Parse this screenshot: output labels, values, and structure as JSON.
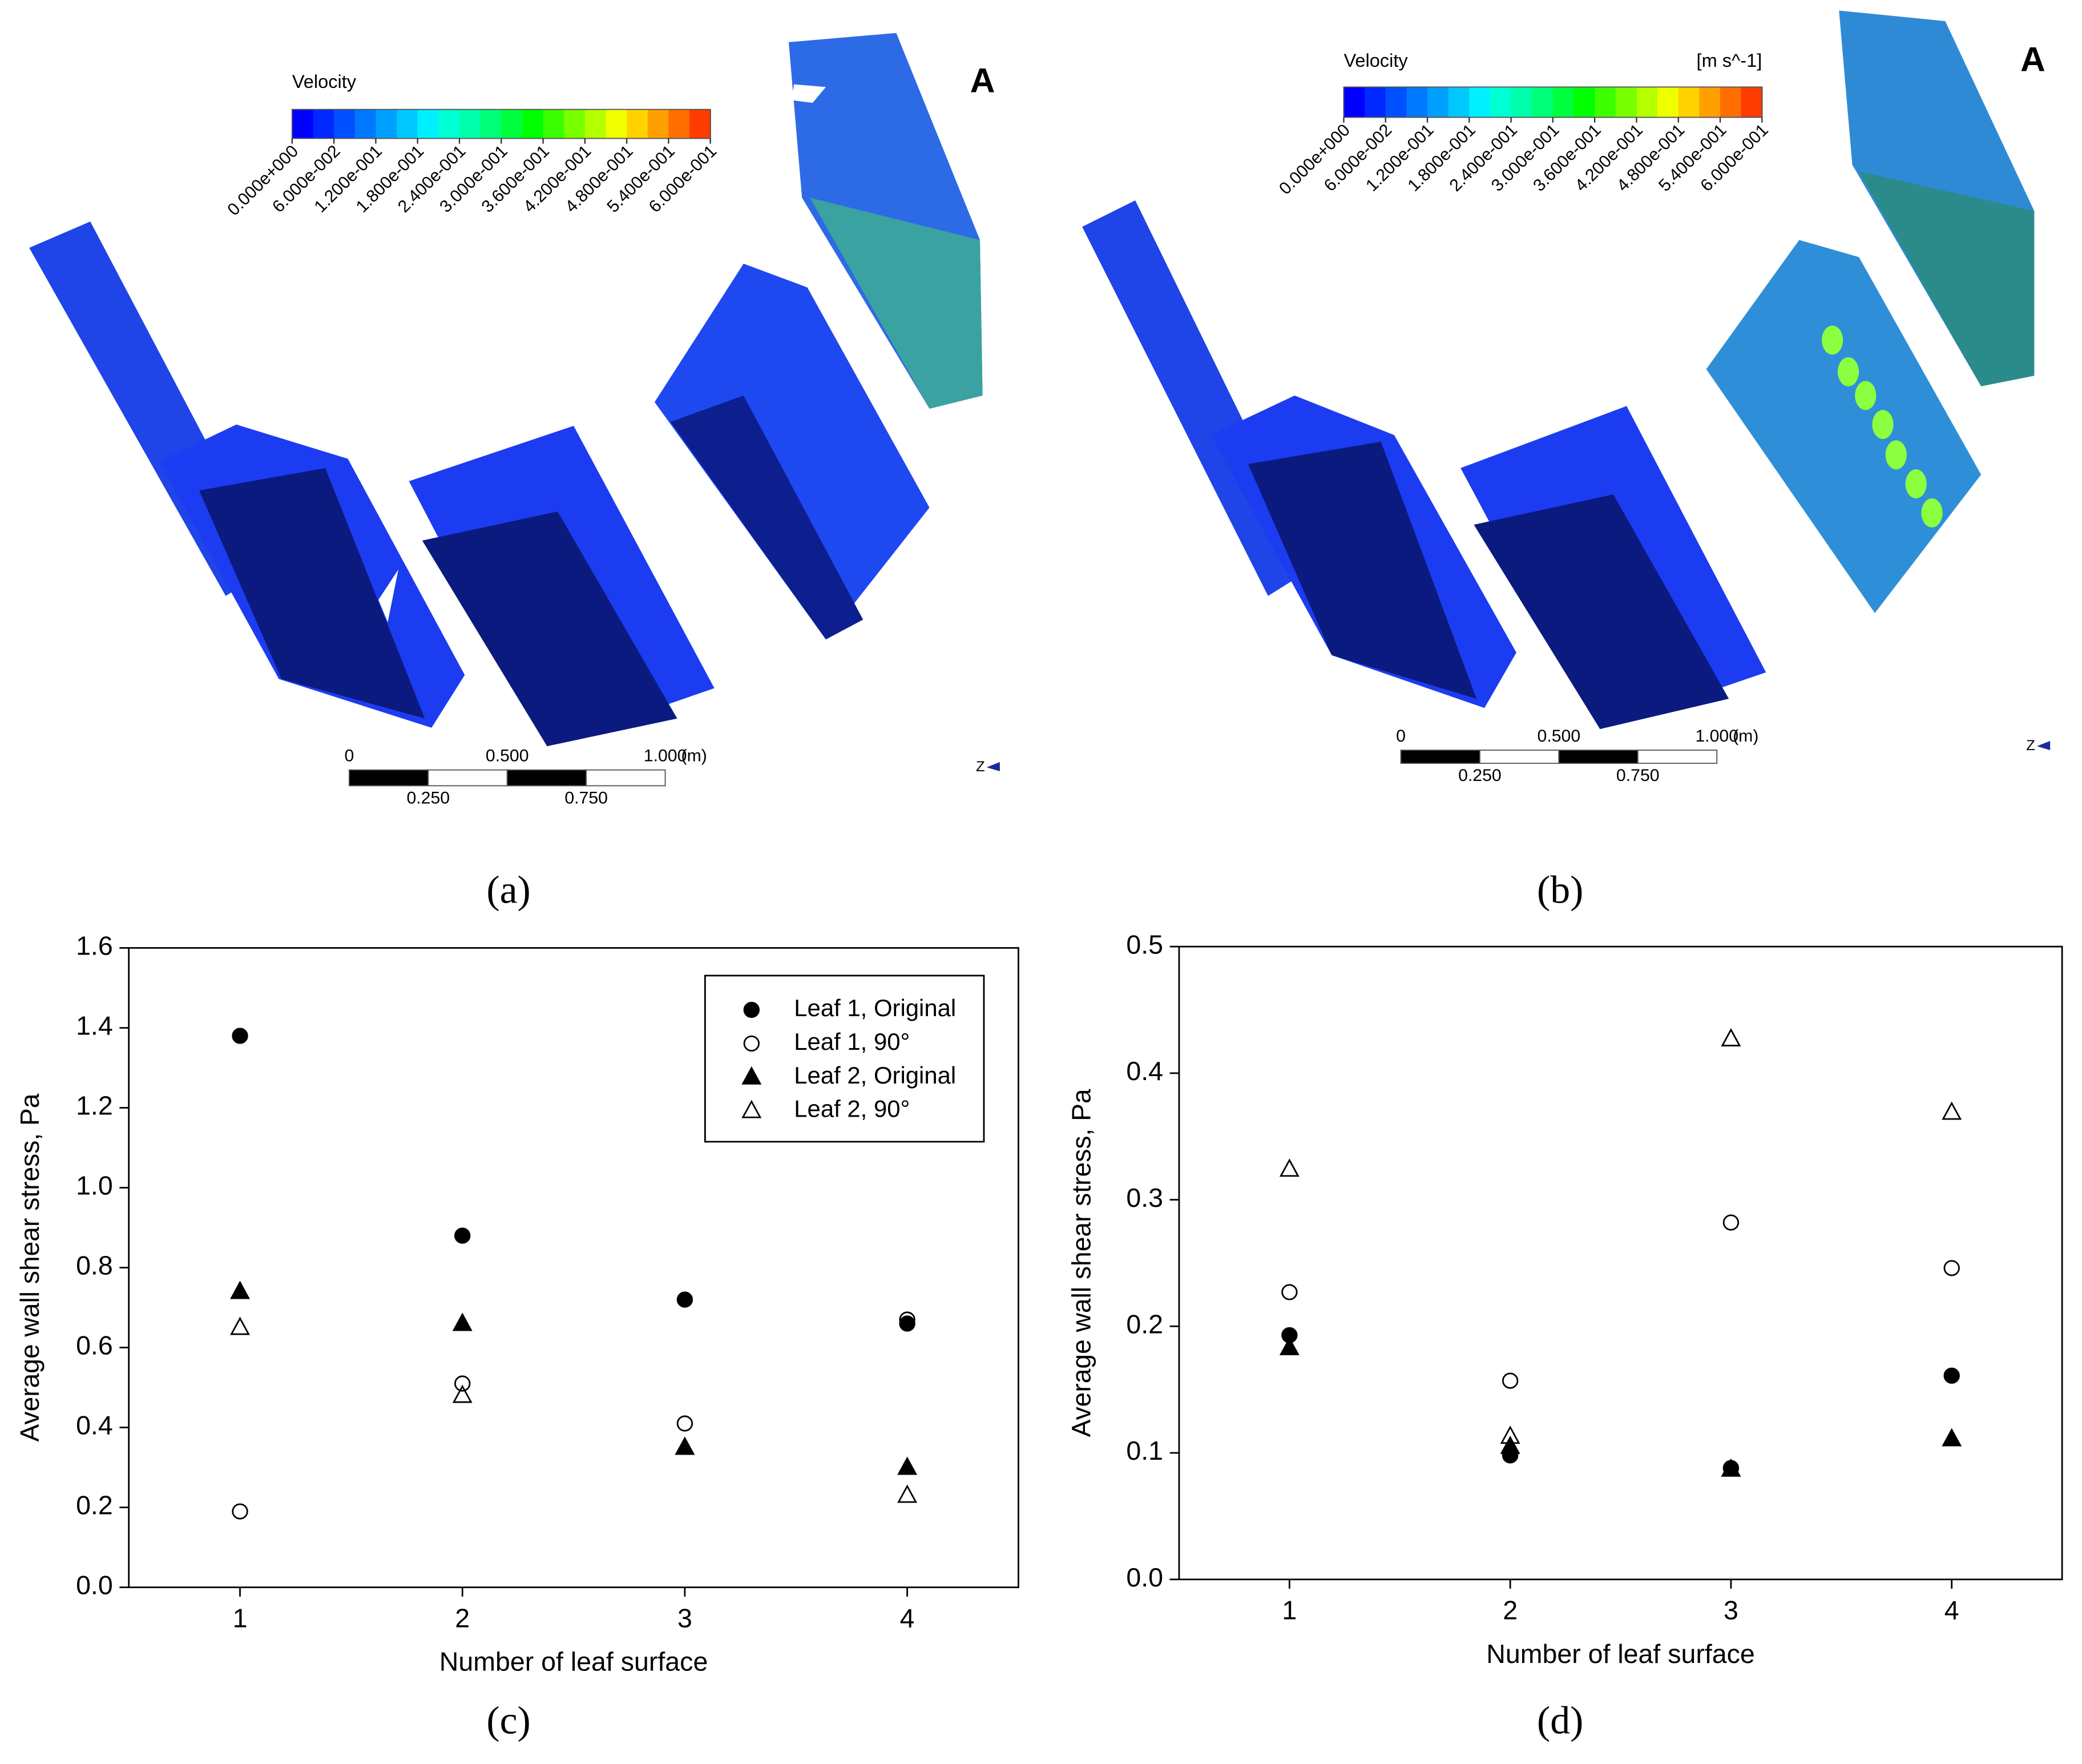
{
  "panel_labels": [
    "(a)",
    "(b)",
    "(c)",
    "(d)"
  ],
  "contour_panels": [
    {
      "legend_title": "Velocity",
      "corner_label": "A",
      "axis_label": "Z",
      "colors": [
        "#0000ff",
        "#0028ff",
        "#0050ff",
        "#0078ff",
        "#00a0ff",
        "#00c8ff",
        "#00f0ff",
        "#00ffd2",
        "#00ffaa",
        "#00ff78",
        "#00ff3c",
        "#00ff00",
        "#3cff00",
        "#78ff00",
        "#b4ff00",
        "#f0ff00",
        "#ffd200",
        "#ffa000",
        "#ff6e00",
        "#ff3c00"
      ],
      "clim": [
        0,
        0.6
      ],
      "colorbar_ticks": [
        {
          "value": 0,
          "label": "0.000e+000"
        },
        {
          "value": 0.06,
          "label": "6.000e-002"
        },
        {
          "value": 0.12,
          "label": "1.200e-001"
        },
        {
          "value": 0.18,
          "label": "1.800e-001"
        },
        {
          "value": 0.24,
          "label": "2.400e-001"
        },
        {
          "value": 0.3,
          "label": "3.000e-001"
        },
        {
          "value": 0.36,
          "label": "3.600e-001"
        },
        {
          "value": 0.42,
          "label": "4.200e-001"
        },
        {
          "value": 0.48,
          "label": "4.800e-001"
        },
        {
          "value": 0.54,
          "label": "5.400e-001"
        },
        {
          "value": 0.6,
          "label": "6.000e-001"
        }
      ],
      "scale_unit": "(m)",
      "scale_ticks": [
        0,
        {
          "value": 0.25,
          "label": "0.250"
        },
        {
          "value": 0.5,
          "label": "0.500"
        },
        {
          "value": 0.75,
          "label": "0.750"
        },
        {
          "value": 1,
          "label": "1.000"
        }
      ]
    },
    {
      "legend_title": "Velocity",
      "legend_unit": "[m s^-1]",
      "corner_label": "A",
      "axis_label": "Z",
      "colors": [
        "#0000ff",
        "#0028ff",
        "#0050ff",
        "#0078ff",
        "#00a0ff",
        "#00c8ff",
        "#00f0ff",
        "#00ffd2",
        "#00ffaa",
        "#00ff78",
        "#00ff3c",
        "#00ff00",
        "#3cff00",
        "#78ff00",
        "#b4ff00",
        "#f0ff00",
        "#ffd200",
        "#ffa000",
        "#ff6e00",
        "#ff3c00"
      ],
      "clim": [
        0,
        0.6
      ],
      "colorbar_ticks": [
        {
          "value": 0,
          "label": "0.000e+000"
        },
        {
          "value": 0.06,
          "label": "6.000e-002"
        },
        {
          "value": 0.12,
          "label": "1.200e-001"
        },
        {
          "value": 0.18,
          "label": "1.800e-001"
        },
        {
          "value": 0.24,
          "label": "2.400e-001"
        },
        {
          "value": 0.3,
          "label": "3.000e-001"
        },
        {
          "value": 0.36,
          "label": "3.600e-001"
        },
        {
          "value": 0.42,
          "label": "4.200e-001"
        },
        {
          "value": 0.48,
          "label": "4.800e-001"
        },
        {
          "value": 0.54,
          "label": "5.400e-001"
        },
        {
          "value": 0.6,
          "label": "6.000e-001"
        }
      ],
      "scale_unit": "(m)",
      "scale_ticks": [
        0,
        {
          "value": 0.25,
          "label": "0.250"
        },
        {
          "value": 0.5,
          "label": "0.500"
        },
        {
          "value": 0.75,
          "label": "0.750"
        },
        {
          "value": 1,
          "label": "1.000"
        }
      ]
    }
  ],
  "chart_data": [
    {
      "type": "scatter",
      "x_label": "Number of leaf surface",
      "y_label": "Average wall shear stress, Pa",
      "x": [
        1,
        2,
        3,
        4
      ],
      "xlim": [
        0.5,
        4.5
      ],
      "xticks": [
        1,
        2,
        3,
        4
      ],
      "ylim": [
        0,
        1.6
      ],
      "yticks": [
        {
          "value": 0,
          "label": "0.0"
        },
        0.2,
        0.4,
        0.6,
        0.8,
        {
          "value": 1,
          "label": "1.0"
        },
        1.2,
        1.4,
        1.6
      ],
      "legend": "upper right",
      "series": [
        {
          "name": "Leaf 1, Original",
          "color": "#000000",
          "marker": "circle",
          "filled": true,
          "values": [
            1.38,
            0.88,
            0.72,
            0.66
          ]
        },
        {
          "name": "Leaf 1, 90°",
          "color": "#000000",
          "marker": "circle",
          "filled": false,
          "values": [
            0.19,
            0.51,
            0.41,
            0.67
          ]
        },
        {
          "name": "Leaf 2, Original",
          "color": "#000000",
          "marker": "triangle",
          "filled": true,
          "values": [
            0.74,
            0.66,
            0.35,
            0.3
          ]
        },
        {
          "name": "Leaf 2, 90°",
          "color": "#000000",
          "marker": "triangle",
          "filled": false,
          "values": [
            0.65,
            0.48,
            0.35,
            0.23
          ]
        }
      ]
    },
    {
      "type": "scatter",
      "x_label": "Number of leaf surface",
      "y_label": "Average wall shear stress, Pa",
      "x": [
        1,
        2,
        3,
        4
      ],
      "xlim": [
        0.5,
        4.5
      ],
      "xticks": [
        1,
        2,
        3,
        4
      ],
      "ylim": [
        0,
        0.5
      ],
      "yticks": [
        {
          "value": 0,
          "label": "0.0"
        },
        0.1,
        0.2,
        0.3,
        0.4,
        0.5
      ],
      "series": [
        {
          "color": "#000000",
          "marker": "circle",
          "filled": true,
          "values": [
            0.193,
            0.098,
            0.088,
            0.161
          ]
        },
        {
          "color": "#000000",
          "marker": "circle",
          "filled": false,
          "values": [
            0.227,
            0.157,
            0.282,
            0.246
          ]
        },
        {
          "color": "#000000",
          "marker": "triangle",
          "filled": true,
          "values": [
            0.183,
            0.105,
            0.087,
            0.111
          ]
        },
        {
          "color": "#000000",
          "marker": "triangle",
          "filled": false,
          "values": [
            0.324,
            0.113,
            0.427,
            0.369
          ]
        }
      ]
    }
  ]
}
